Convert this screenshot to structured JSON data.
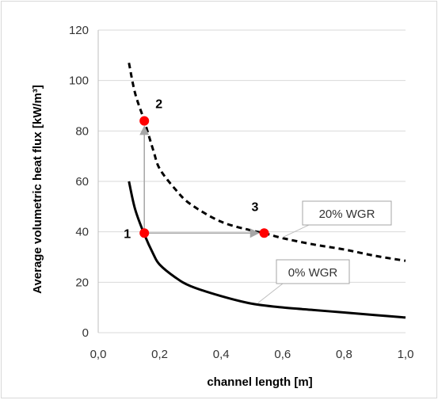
{
  "chart_data": {
    "type": "line",
    "xlabel": "channel  length [m]",
    "ylabel": "Average volumetric  heat  flux [kW/m³]",
    "xlim": [
      0,
      1.0
    ],
    "ylim": [
      0,
      120
    ],
    "x_ticks": [
      "0,0",
      "0,2",
      "0,4",
      "0,6",
      "0,8",
      "1,0"
    ],
    "y_ticks": [
      "0",
      "20",
      "40",
      "60",
      "80",
      "100",
      "120"
    ],
    "grid": "horizontal",
    "series": [
      {
        "name": "0% WGR",
        "style": "solid",
        "color": "#000000",
        "x": [
          0.1,
          0.12,
          0.15,
          0.18,
          0.2,
          0.25,
          0.3,
          0.4,
          0.5,
          0.6,
          0.7,
          0.8,
          0.9,
          1.0
        ],
        "y": [
          60,
          49,
          39,
          31,
          27,
          22,
          18.5,
          14.5,
          11.5,
          10,
          9,
          8,
          7,
          6
        ]
      },
      {
        "name": "20% WGR",
        "style": "dashed",
        "color": "#000000",
        "x": [
          0.1,
          0.12,
          0.15,
          0.18,
          0.2,
          0.25,
          0.3,
          0.4,
          0.5,
          0.54,
          0.6,
          0.7,
          0.8,
          0.9,
          1.0
        ],
        "y": [
          107,
          95,
          84,
          72,
          65,
          57,
          51,
          44,
          40.5,
          39.5,
          37.5,
          35,
          33,
          30.5,
          28.5
        ]
      }
    ],
    "points": [
      {
        "label": "1",
        "x": 0.15,
        "y": 39.5
      },
      {
        "label": "2",
        "x": 0.15,
        "y": 84
      },
      {
        "label": "3",
        "x": 0.54,
        "y": 39.5
      }
    ],
    "arrows": [
      {
        "from": [
          0.15,
          39.5
        ],
        "to": [
          0.15,
          84
        ]
      },
      {
        "from": [
          0.15,
          39.5
        ],
        "to": [
          0.54,
          39.5
        ]
      }
    ],
    "callouts": [
      {
        "text": "0% WGR",
        "series": 0,
        "anchor": [
          0.52,
          11.8
        ]
      },
      {
        "text": "20% WGR",
        "series": 1,
        "anchor": [
          0.6,
          37.8
        ]
      }
    ],
    "point_color": "#ff0000",
    "arrow_color": "#a6a6a6"
  }
}
